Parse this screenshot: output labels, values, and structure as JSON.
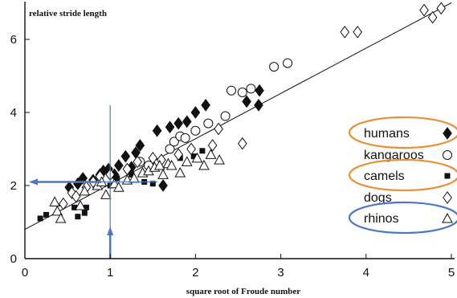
{
  "chart_data": {
    "type": "scatter",
    "title": "",
    "xlabel": "square root of Froude number",
    "ylabel": "relative stride length",
    "xlim": [
      0,
      5
    ],
    "ylim": [
      0,
      6.9
    ],
    "x_ticks": [
      "0",
      "1",
      "2",
      "3",
      "4",
      "5"
    ],
    "y_ticks": [
      "0",
      "2",
      "4",
      "6"
    ],
    "grid": false,
    "legend_position": "right",
    "legend": [
      {
        "label": "humans",
        "marker": "diamond-filled",
        "highlight": "orange"
      },
      {
        "label": "kangaroos",
        "marker": "circle-open",
        "highlight": ""
      },
      {
        "label": "camels",
        "marker": "square-filled",
        "highlight": "orange"
      },
      {
        "label": "dogs",
        "marker": "diamond-open",
        "highlight": ""
      },
      {
        "label": "rhinos",
        "marker": "triangle-open",
        "highlight": "blue"
      }
    ],
    "fit_line": {
      "x": [
        0,
        5
      ],
      "y": [
        0.8,
        7.0
      ]
    },
    "reference_lines": {
      "vertical_x": 1.0,
      "horizontal_y": 2.1,
      "arrow_up_at_x": 1.0,
      "arrow_left_at_y": 2.1,
      "color": "#4a78c2"
    },
    "series": [
      {
        "name": "humans",
        "marker": "diamond-filled",
        "points": [
          [
            0.52,
            1.95
          ],
          [
            0.62,
            2.05
          ],
          [
            0.68,
            2.2
          ],
          [
            0.8,
            2.15
          ],
          [
            0.88,
            2.3
          ],
          [
            0.92,
            2.4
          ],
          [
            0.98,
            2.45
          ],
          [
            1.05,
            2.3
          ],
          [
            1.1,
            2.55
          ],
          [
            1.18,
            2.8
          ],
          [
            1.3,
            2.9
          ],
          [
            1.35,
            3.1
          ],
          [
            1.55,
            3.5
          ],
          [
            1.7,
            3.6
          ],
          [
            1.8,
            3.7
          ],
          [
            1.9,
            3.75
          ],
          [
            2.0,
            4.0
          ],
          [
            2.12,
            4.2
          ],
          [
            2.6,
            4.3
          ],
          [
            2.75,
            4.6
          ],
          [
            2.74,
            4.2
          ],
          [
            1.62,
            2.0
          ],
          [
            1.25,
            2.5
          ]
        ]
      },
      {
        "name": "kangaroos",
        "marker": "circle-open",
        "points": [
          [
            1.35,
            2.65
          ],
          [
            1.45,
            2.55
          ],
          [
            1.7,
            3.0
          ],
          [
            1.75,
            3.2
          ],
          [
            1.82,
            3.35
          ],
          [
            1.88,
            3.3
          ],
          [
            2.0,
            3.5
          ],
          [
            2.15,
            3.7
          ],
          [
            2.35,
            3.9
          ],
          [
            2.42,
            4.6
          ],
          [
            2.55,
            4.55
          ],
          [
            2.65,
            4.65
          ],
          [
            2.92,
            5.25
          ],
          [
            3.08,
            5.35
          ]
        ]
      },
      {
        "name": "camels",
        "marker": "square-filled",
        "points": [
          [
            0.18,
            1.1
          ],
          [
            0.25,
            1.2
          ],
          [
            0.58,
            1.4
          ],
          [
            0.62,
            1.15
          ],
          [
            0.7,
            1.25
          ],
          [
            0.72,
            1.4
          ],
          [
            1.0,
            2.0
          ],
          [
            1.08,
            2.2
          ],
          [
            1.25,
            2.3
          ],
          [
            1.4,
            2.1
          ],
          [
            1.5,
            2.05
          ],
          [
            1.82,
            2.75
          ],
          [
            1.98,
            2.8
          ],
          [
            2.08,
            2.95
          ]
        ]
      },
      {
        "name": "dogs",
        "marker": "diamond-open",
        "points": [
          [
            0.45,
            1.5
          ],
          [
            0.55,
            1.8
          ],
          [
            0.6,
            1.7
          ],
          [
            0.72,
            1.95
          ],
          [
            0.8,
            2.1
          ],
          [
            0.88,
            2.25
          ],
          [
            1.0,
            2.3
          ],
          [
            1.2,
            2.45
          ],
          [
            1.32,
            2.65
          ],
          [
            1.5,
            2.75
          ],
          [
            1.6,
            2.7
          ],
          [
            1.8,
            2.85
          ],
          [
            1.95,
            3.0
          ],
          [
            2.2,
            3.1
          ],
          [
            2.27,
            3.55
          ],
          [
            2.55,
            3.15
          ],
          [
            3.75,
            6.2
          ],
          [
            3.9,
            6.2
          ],
          [
            4.68,
            6.8
          ],
          [
            4.78,
            6.6
          ],
          [
            4.88,
            6.85
          ]
        ]
      },
      {
        "name": "rhinos",
        "marker": "triangle-open",
        "points": [
          [
            0.35,
            1.55
          ],
          [
            0.38,
            1.3
          ],
          [
            0.42,
            1.1
          ],
          [
            0.65,
            1.45
          ],
          [
            0.7,
            1.85
          ],
          [
            0.85,
            2.0
          ],
          [
            0.9,
            2.1
          ],
          [
            0.95,
            1.75
          ],
          [
            1.05,
            2.05
          ],
          [
            1.1,
            1.95
          ],
          [
            1.2,
            2.15
          ],
          [
            1.28,
            2.2
          ],
          [
            1.38,
            2.35
          ],
          [
            1.45,
            2.4
          ],
          [
            1.52,
            2.5
          ],
          [
            1.58,
            2.55
          ],
          [
            1.62,
            2.3
          ],
          [
            1.68,
            2.6
          ],
          [
            1.72,
            2.55
          ],
          [
            1.82,
            2.35
          ],
          [
            1.9,
            2.65
          ],
          [
            2.02,
            2.75
          ],
          [
            2.1,
            2.55
          ],
          [
            2.18,
            2.85
          ],
          [
            2.28,
            2.7
          ]
        ]
      }
    ]
  }
}
